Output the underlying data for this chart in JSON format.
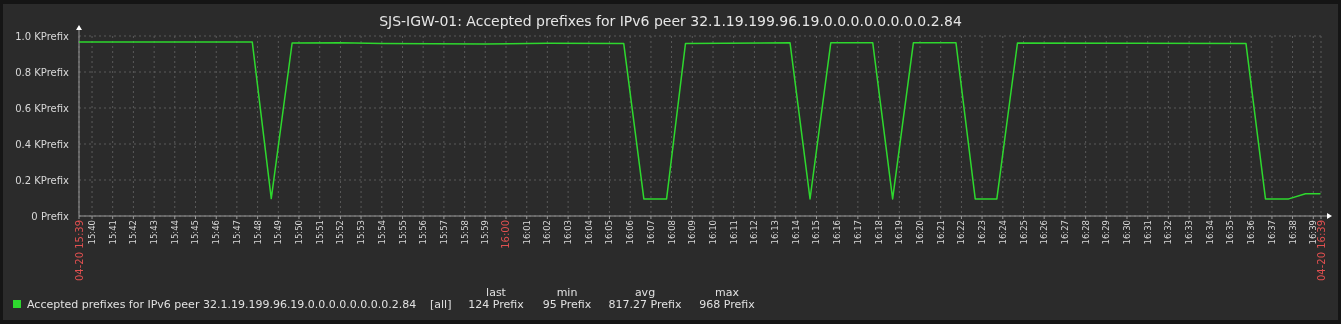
{
  "chart_data": {
    "type": "line",
    "title": "SJS-IGW-01: Accepted prefixes for IPv6 peer 32.1.19.199.96.19.0.0.0.0.0.0.0.0.2.84",
    "x": [
      15.6562,
      15.7957,
      15.811,
      15.8278,
      15.8667,
      15.9,
      15.9833,
      16.0333,
      16.0948,
      16.111,
      16.1293,
      16.1445,
      16.2287,
      16.2448,
      16.2615,
      16.2953,
      16.3113,
      16.328,
      16.3623,
      16.3778,
      16.3952,
      16.4118,
      16.5958,
      16.6115,
      16.6302,
      16.6437,
      16.6558
    ],
    "series": [
      {
        "name": "Accepted prefixes for IPv6 peer 32.1.19.199.96.19.0.0.0.0.0.0.0.0.2.84",
        "color": "#2ed82e",
        "values": [
          0.967,
          0.967,
          0.097,
          0.961,
          0.963,
          0.958,
          0.956,
          0.96,
          0.958,
          0.095,
          0.095,
          0.958,
          0.962,
          0.095,
          0.962,
          0.962,
          0.095,
          0.962,
          0.962,
          0.095,
          0.095,
          0.961,
          0.958,
          0.095,
          0.095,
          0.124,
          0.124
        ]
      }
    ],
    "xlim": [
      15.6562,
      16.6562
    ],
    "xticks": [
      {
        "value": 15.6562,
        "label": "04-20 15:39"
      },
      {
        "value": 15.6667,
        "label": "15:40"
      },
      {
        "value": 15.6833,
        "label": "15:41"
      },
      {
        "value": 15.7,
        "label": "15:42"
      },
      {
        "value": 15.7167,
        "label": "15:43"
      },
      {
        "value": 15.7333,
        "label": "15:44"
      },
      {
        "value": 15.75,
        "label": "15:45"
      },
      {
        "value": 15.7667,
        "label": "15:46"
      },
      {
        "value": 15.7833,
        "label": "15:47"
      },
      {
        "value": 15.8,
        "label": "15:48"
      },
      {
        "value": 15.8167,
        "label": "15:49"
      },
      {
        "value": 15.8333,
        "label": "15:50"
      },
      {
        "value": 15.85,
        "label": "15:51"
      },
      {
        "value": 15.8667,
        "label": "15:52"
      },
      {
        "value": 15.8833,
        "label": "15:53"
      },
      {
        "value": 15.9,
        "label": "15:54"
      },
      {
        "value": 15.9167,
        "label": "15:55"
      },
      {
        "value": 15.9333,
        "label": "15:56"
      },
      {
        "value": 15.95,
        "label": "15:57"
      },
      {
        "value": 15.9667,
        "label": "15:58"
      },
      {
        "value": 15.9833,
        "label": "15:59"
      },
      {
        "value": 16,
        "label": "16:00"
      },
      {
        "value": 16.0167,
        "label": "16:01"
      },
      {
        "value": 16.0333,
        "label": "16:02"
      },
      {
        "value": 16.05,
        "label": "16:03"
      },
      {
        "value": 16.0667,
        "label": "16:04"
      },
      {
        "value": 16.0833,
        "label": "16:05"
      },
      {
        "value": 16.1,
        "label": "16:06"
      },
      {
        "value": 16.1167,
        "label": "16:07"
      },
      {
        "value": 16.1333,
        "label": "16:08"
      },
      {
        "value": 16.15,
        "label": "16:09"
      },
      {
        "value": 16.1667,
        "label": "16:10"
      },
      {
        "value": 16.1833,
        "label": "16:11"
      },
      {
        "value": 16.2,
        "label": "16:12"
      },
      {
        "value": 16.2167,
        "label": "16:13"
      },
      {
        "value": 16.2333,
        "label": "16:14"
      },
      {
        "value": 16.25,
        "label": "16:15"
      },
      {
        "value": 16.2667,
        "label": "16:16"
      },
      {
        "value": 16.2833,
        "label": "16:17"
      },
      {
        "value": 16.3,
        "label": "16:18"
      },
      {
        "value": 16.3167,
        "label": "16:19"
      },
      {
        "value": 16.3333,
        "label": "16:20"
      },
      {
        "value": 16.35,
        "label": "16:21"
      },
      {
        "value": 16.3667,
        "label": "16:22"
      },
      {
        "value": 16.3833,
        "label": "16:23"
      },
      {
        "value": 16.4,
        "label": "16:24"
      },
      {
        "value": 16.4167,
        "label": "16:25"
      },
      {
        "value": 16.4333,
        "label": "16:26"
      },
      {
        "value": 16.45,
        "label": "16:27"
      },
      {
        "value": 16.4667,
        "label": "16:28"
      },
      {
        "value": 16.4833,
        "label": "16:29"
      },
      {
        "value": 16.5,
        "label": "16:30"
      },
      {
        "value": 16.5167,
        "label": "16:31"
      },
      {
        "value": 16.5333,
        "label": "16:32"
      },
      {
        "value": 16.55,
        "label": "16:33"
      },
      {
        "value": 16.5667,
        "label": "16:34"
      },
      {
        "value": 16.5833,
        "label": "16:35"
      },
      {
        "value": 16.6,
        "label": "16:36"
      },
      {
        "value": 16.6167,
        "label": "16:37"
      },
      {
        "value": 16.6333,
        "label": "16:38"
      },
      {
        "value": 16.65,
        "label": "16:39"
      },
      {
        "value": 16.6562,
        "label": "04-20 16:39"
      }
    ],
    "ylim": [
      0,
      1.0
    ],
    "yticks": [
      {
        "value": 0,
        "label": "0 Prefix"
      },
      {
        "value": 0.2,
        "label": "0.2 KPrefix"
      },
      {
        "value": 0.4,
        "label": "0.4 KPrefix"
      },
      {
        "value": 0.6,
        "label": "0.6 KPrefix"
      },
      {
        "value": 0.8,
        "label": "0.8 KPrefix"
      },
      {
        "value": 1.0,
        "label": "1.0 KPrefix"
      }
    ],
    "grid": true,
    "legend": "bottom",
    "marker": "none",
    "line_style": "solid",
    "annotations": [
      "[all]",
      "last",
      "124 Prefix",
      "min",
      "95 Prefix",
      "avg",
      "817.27 Prefix",
      "max",
      "968 Prefix"
    ]
  }
}
